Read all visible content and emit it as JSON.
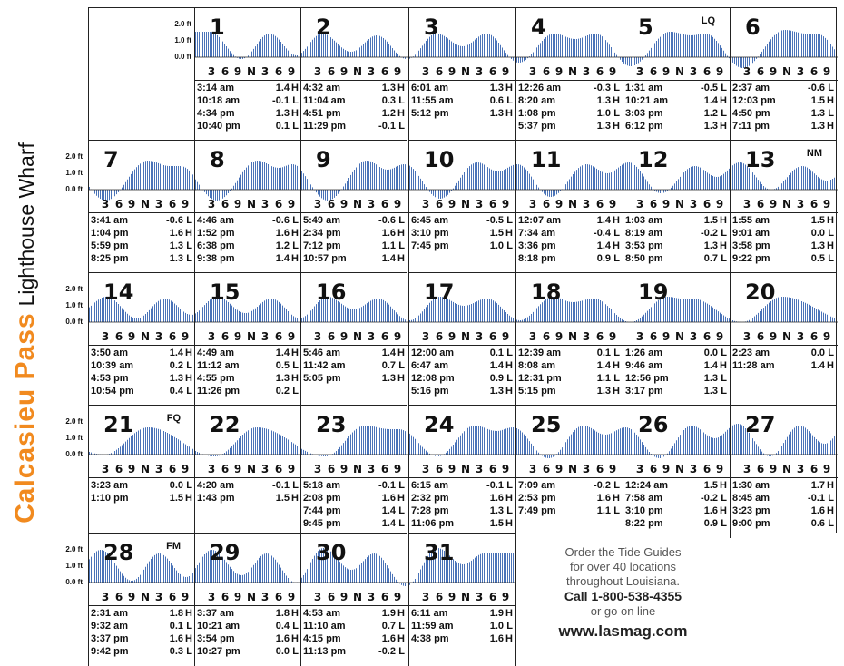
{
  "title": {
    "place": "Calcasieu Pass",
    "station": "Lighthouse Wharf"
  },
  "axis": {
    "y_labels": [
      "2.0 ft",
      "1.0 ft",
      "0.0 ft"
    ],
    "hour_ticks": [
      "3",
      "6",
      "9",
      "N",
      "3",
      "6",
      "9"
    ],
    "line_color": "#4a73b8"
  },
  "days": [
    {
      "day": "1",
      "phase": "",
      "tides": [
        [
          "3:14 am",
          "1.4",
          "H"
        ],
        [
          "10:18 am",
          "-0.1",
          "L"
        ],
        [
          "4:34 pm",
          "1.3",
          "H"
        ],
        [
          "10:40 pm",
          "0.1",
          "L"
        ]
      ]
    },
    {
      "day": "2",
      "phase": "",
      "tides": [
        [
          "4:32 am",
          "1.3",
          "H"
        ],
        [
          "11:04 am",
          "0.3",
          "L"
        ],
        [
          "4:51 pm",
          "1.2",
          "H"
        ],
        [
          "11:29 pm",
          "-0.1",
          "L"
        ]
      ]
    },
    {
      "day": "3",
      "phase": "",
      "tides": [
        [
          "6:01 am",
          "1.3",
          "H"
        ],
        [
          "11:55 am",
          "0.6",
          "L"
        ],
        [
          "5:12 pm",
          "1.3",
          "H"
        ]
      ]
    },
    {
      "day": "4",
      "phase": "",
      "tides": [
        [
          "12:26 am",
          "-0.3",
          "L"
        ],
        [
          "8:20 am",
          "1.3",
          "H"
        ],
        [
          "1:08 pm",
          "1.0",
          "L"
        ],
        [
          "5:37 pm",
          "1.3",
          "H"
        ]
      ]
    },
    {
      "day": "5",
      "phase": "LQ",
      "tides": [
        [
          "1:31 am",
          "-0.5",
          "L"
        ],
        [
          "10:21 am",
          "1.4",
          "H"
        ],
        [
          "3:03 pm",
          "1.2",
          "L"
        ],
        [
          "6:12 pm",
          "1.3",
          "H"
        ]
      ]
    },
    {
      "day": "6",
      "phase": "",
      "tides": [
        [
          "2:37 am",
          "-0.6",
          "L"
        ],
        [
          "12:03 pm",
          "1.5",
          "H"
        ],
        [
          "4:50 pm",
          "1.3",
          "L"
        ],
        [
          "7:11 pm",
          "1.3",
          "H"
        ]
      ]
    },
    {
      "day": "7",
      "phase": "",
      "tides": [
        [
          "3:41 am",
          "-0.6",
          "L"
        ],
        [
          "1:04 pm",
          "1.6",
          "H"
        ],
        [
          "5:59 pm",
          "1.3",
          "L"
        ],
        [
          "8:25 pm",
          "1.3",
          "L"
        ]
      ]
    },
    {
      "day": "8",
      "phase": "",
      "tides": [
        [
          "4:46 am",
          "-0.6",
          "L"
        ],
        [
          "1:52 pm",
          "1.6",
          "H"
        ],
        [
          "6:38 pm",
          "1.2",
          "L"
        ],
        [
          "9:38 pm",
          "1.4",
          "H"
        ]
      ]
    },
    {
      "day": "9",
      "phase": "",
      "tides": [
        [
          "5:49 am",
          "-0.6",
          "L"
        ],
        [
          "2:34 pm",
          "1.6",
          "H"
        ],
        [
          "7:12 pm",
          "1.1",
          "L"
        ],
        [
          "10:57 pm",
          "1.4",
          "H"
        ]
      ]
    },
    {
      "day": "10",
      "phase": "",
      "tides": [
        [
          "6:45 am",
          "-0.5",
          "L"
        ],
        [
          "3:10 pm",
          "1.5",
          "H"
        ],
        [
          "7:45 pm",
          "1.0",
          "L"
        ]
      ]
    },
    {
      "day": "11",
      "phase": "",
      "tides": [
        [
          "12:07 am",
          "1.4",
          "H"
        ],
        [
          "7:34 am",
          "-0.4",
          "L"
        ],
        [
          "3:36 pm",
          "1.4",
          "H"
        ],
        [
          "8:18 pm",
          "0.9",
          "L"
        ]
      ]
    },
    {
      "day": "12",
      "phase": "",
      "tides": [
        [
          "1:03 am",
          "1.5",
          "H"
        ],
        [
          "8:19 am",
          "-0.2",
          "L"
        ],
        [
          "3:53 pm",
          "1.3",
          "H"
        ],
        [
          "8:50 pm",
          "0.7",
          "L"
        ]
      ]
    },
    {
      "day": "13",
      "phase": "NM",
      "tides": [
        [
          "1:55 am",
          "1.5",
          "H"
        ],
        [
          "9:01 am",
          "0.0",
          "L"
        ],
        [
          "3:58 pm",
          "1.3",
          "H"
        ],
        [
          "9:22 pm",
          "0.5",
          "L"
        ]
      ]
    },
    {
      "day": "14",
      "phase": "",
      "tides": [
        [
          "3:50 am",
          "1.4",
          "H"
        ],
        [
          "10:39 am",
          "0.2",
          "L"
        ],
        [
          "4:53 pm",
          "1.3",
          "H"
        ],
        [
          "10:54 pm",
          "0.4",
          "L"
        ]
      ]
    },
    {
      "day": "15",
      "phase": "",
      "tides": [
        [
          "4:49 am",
          "1.4",
          "H"
        ],
        [
          "11:12 am",
          "0.5",
          "L"
        ],
        [
          "4:55 pm",
          "1.3",
          "H"
        ],
        [
          "11:26 pm",
          "0.2",
          "L"
        ]
      ]
    },
    {
      "day": "16",
      "phase": "",
      "tides": [
        [
          "5:46 am",
          "1.4",
          "H"
        ],
        [
          "11:42 am",
          "0.7",
          "L"
        ],
        [
          "5:05 pm",
          "1.3",
          "H"
        ]
      ]
    },
    {
      "day": "17",
      "phase": "",
      "tides": [
        [
          "12:00 am",
          "0.1",
          "L"
        ],
        [
          "6:47 am",
          "1.4",
          "H"
        ],
        [
          "12:08 pm",
          "0.9",
          "L"
        ],
        [
          "5:16 pm",
          "1.3",
          "H"
        ]
      ]
    },
    {
      "day": "18",
      "phase": "",
      "tides": [
        [
          "12:39 am",
          "0.1",
          "L"
        ],
        [
          "8:08 am",
          "1.4",
          "H"
        ],
        [
          "12:31 pm",
          "1.1",
          "L"
        ],
        [
          "5:15 pm",
          "1.3",
          "H"
        ]
      ]
    },
    {
      "day": "19",
      "phase": "",
      "tides": [
        [
          "1:26 am",
          "0.0",
          "L"
        ],
        [
          "9:46 am",
          "1.4",
          "H"
        ],
        [
          "12:56 pm",
          "1.3",
          "L"
        ],
        [
          "3:17 pm",
          "1.3",
          "L"
        ]
      ]
    },
    {
      "day": "20",
      "phase": "",
      "tides": [
        [
          "2:23 am",
          "0.0",
          "L"
        ],
        [
          "11:28 am",
          "1.4",
          "H"
        ]
      ]
    },
    {
      "day": "21",
      "phase": "FQ",
      "tides": [
        [
          "3:23 am",
          "0.0",
          "L"
        ],
        [
          "1:10 pm",
          "1.5",
          "H"
        ]
      ]
    },
    {
      "day": "22",
      "phase": "",
      "tides": [
        [
          "4:20 am",
          "-0.1",
          "L"
        ],
        [
          "1:43 pm",
          "1.5",
          "H"
        ]
      ]
    },
    {
      "day": "23",
      "phase": "",
      "tides": [
        [
          "5:18 am",
          "-0.1",
          "L"
        ],
        [
          "2:08 pm",
          "1.6",
          "H"
        ],
        [
          "7:44 pm",
          "1.4",
          "L"
        ],
        [
          "9:45 pm",
          "1.4",
          "L"
        ]
      ]
    },
    {
      "day": "24",
      "phase": "",
      "tides": [
        [
          "6:15 am",
          "-0.1",
          "L"
        ],
        [
          "2:32 pm",
          "1.6",
          "H"
        ],
        [
          "7:28 pm",
          "1.3",
          "L"
        ],
        [
          "11:06 pm",
          "1.5",
          "H"
        ]
      ]
    },
    {
      "day": "25",
      "phase": "",
      "tides": [
        [
          "7:09 am",
          "-0.2",
          "L"
        ],
        [
          "2:53 pm",
          "1.6",
          "H"
        ],
        [
          "7:49 pm",
          "1.1",
          "L"
        ]
      ]
    },
    {
      "day": "26",
      "phase": "",
      "tides": [
        [
          "12:24 am",
          "1.5",
          "H"
        ],
        [
          "7:58 am",
          "-0.2",
          "L"
        ],
        [
          "3:10 pm",
          "1.6",
          "H"
        ],
        [
          "8:22 pm",
          "0.9",
          "L"
        ]
      ]
    },
    {
      "day": "27",
      "phase": "",
      "tides": [
        [
          "1:30 am",
          "1.7",
          "H"
        ],
        [
          "8:45 am",
          "-0.1",
          "L"
        ],
        [
          "3:23 pm",
          "1.6",
          "H"
        ],
        [
          "9:00 pm",
          "0.6",
          "L"
        ]
      ]
    },
    {
      "day": "28",
      "phase": "FM",
      "tides": [
        [
          "2:31 am",
          "1.8",
          "H"
        ],
        [
          "9:32 am",
          "0.1",
          "L"
        ],
        [
          "3:37 pm",
          "1.6",
          "H"
        ],
        [
          "9:42 pm",
          "0.3",
          "L"
        ]
      ]
    },
    {
      "day": "29",
      "phase": "",
      "tides": [
        [
          "3:37 am",
          "1.8",
          "H"
        ],
        [
          "10:21 am",
          "0.4",
          "L"
        ],
        [
          "3:54 pm",
          "1.6",
          "H"
        ],
        [
          "10:27 pm",
          "0.0",
          "L"
        ]
      ]
    },
    {
      "day": "30",
      "phase": "",
      "tides": [
        [
          "4:53 am",
          "1.9",
          "H"
        ],
        [
          "11:10 am",
          "0.7",
          "L"
        ],
        [
          "4:15 pm",
          "1.6",
          "H"
        ],
        [
          "11:13 pm",
          "-0.2",
          "L"
        ]
      ]
    },
    {
      "day": "31",
      "phase": "",
      "tides": [
        [
          "6:11 am",
          "1.9",
          "H"
        ],
        [
          "11:59 am",
          "1.0",
          "L"
        ],
        [
          "4:38 pm",
          "1.6",
          "H"
        ]
      ]
    }
  ],
  "promo": {
    "line1": "Order the Tide Guides",
    "line2": "for over 40 locations",
    "line3": "throughout Louisiana.",
    "call": "Call 1-800-538-4355",
    "online": "or go on line",
    "web": "www.lasmag.com"
  }
}
